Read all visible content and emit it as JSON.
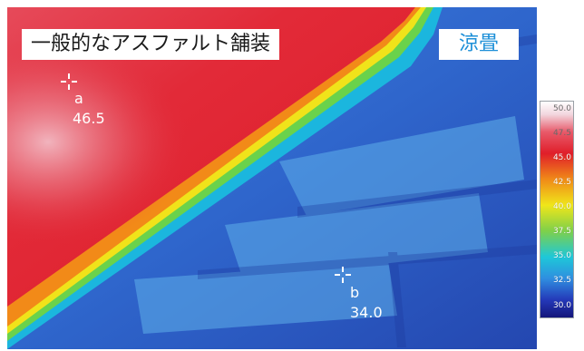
{
  "labels": {
    "left": "一般的なアスファルト舗装",
    "right": "涼畳"
  },
  "points": [
    {
      "id": "a",
      "value": "46.5"
    },
    {
      "id": "b",
      "value": "34.0"
    }
  ],
  "scale": {
    "ticks": [
      "50.0",
      "47.5",
      "45.0",
      "42.5",
      "40.0",
      "37.5",
      "35.0",
      "32.5",
      "30.0"
    ]
  },
  "colors": {
    "hot": "#e21f2c",
    "cool": "#2f5fc8",
    "label_right_text": "#1e90d8"
  },
  "icons": {
    "marker": "crosshair-icon"
  }
}
